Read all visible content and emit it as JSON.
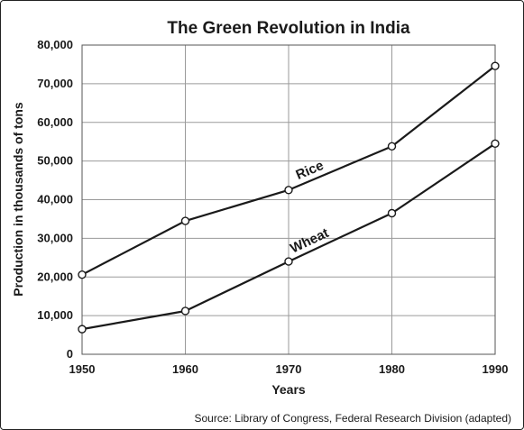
{
  "chart_data": {
    "type": "line",
    "title": "The Green Revolution in India",
    "xlabel": "Years",
    "ylabel": "Production in thousands of tons",
    "x": [
      1950,
      1960,
      1970,
      1980,
      1990
    ],
    "x_tick_labels": [
      "1950",
      "1960",
      "1970",
      "1980",
      "1990"
    ],
    "y_tick_labels": [
      "0",
      "10,000",
      "20,000",
      "30,000",
      "40,000",
      "50,000",
      "60,000",
      "70,000",
      "80,000"
    ],
    "y_ticks": [
      0,
      10000,
      20000,
      30000,
      40000,
      50000,
      60000,
      70000,
      80000
    ],
    "xlim": [
      1950,
      1990
    ],
    "ylim": [
      0,
      80000
    ],
    "grid": true,
    "legend": "none (series labeled inline)",
    "series": [
      {
        "name": "Rice",
        "values": [
          20600,
          34500,
          42500,
          53800,
          74600
        ]
      },
      {
        "name": "Wheat",
        "values": [
          6500,
          11200,
          24000,
          36500,
          54500
        ]
      }
    ],
    "source": "Source: Library of Congress, Federal Research Division (adapted)"
  }
}
